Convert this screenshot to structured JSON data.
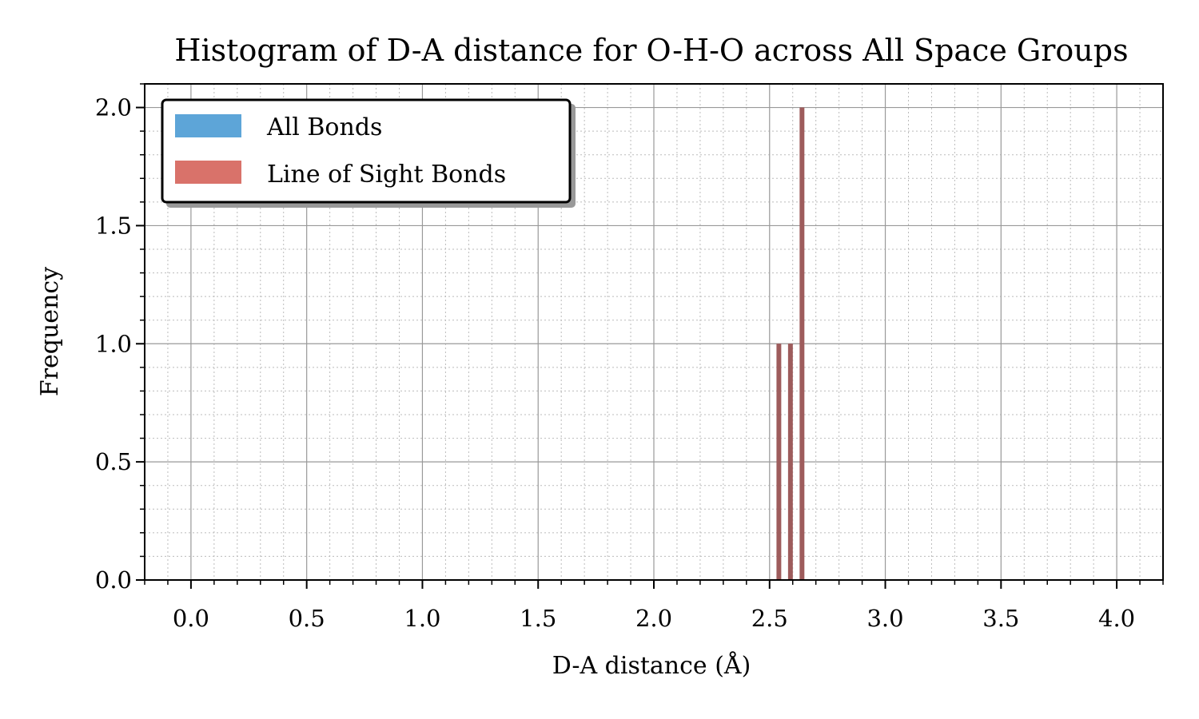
{
  "chart_data": {
    "type": "bar",
    "title": "Histogram of D-A distance for O-H-O across All Space Groups",
    "xlabel": "D-A distance (Å)",
    "ylabel": "Frequency",
    "xlim": [
      -0.2,
      4.2
    ],
    "ylim": [
      0,
      2.1
    ],
    "xticks": [
      "0.0",
      "0.5",
      "1.0",
      "1.5",
      "2.0",
      "2.5",
      "3.0",
      "3.5",
      "4.0"
    ],
    "yticks": [
      "0.0",
      "0.5",
      "1.0",
      "1.5",
      "2.0"
    ],
    "grid": true,
    "legend_position": "top-left",
    "bin_width": 0.02,
    "series": [
      {
        "name": "All Bonds",
        "color": "#5da5d8",
        "bins": [
          {
            "x": 2.54,
            "count": 1
          },
          {
            "x": 2.59,
            "count": 1
          },
          {
            "x": 2.64,
            "count": 2
          }
        ]
      },
      {
        "name": "Line of Sight Bonds",
        "color": "#d9726a",
        "bins": [
          {
            "x": 2.54,
            "count": 1
          },
          {
            "x": 2.59,
            "count": 1
          },
          {
            "x": 2.64,
            "count": 2
          }
        ]
      }
    ],
    "overlap_color": "#9e5c5c"
  }
}
